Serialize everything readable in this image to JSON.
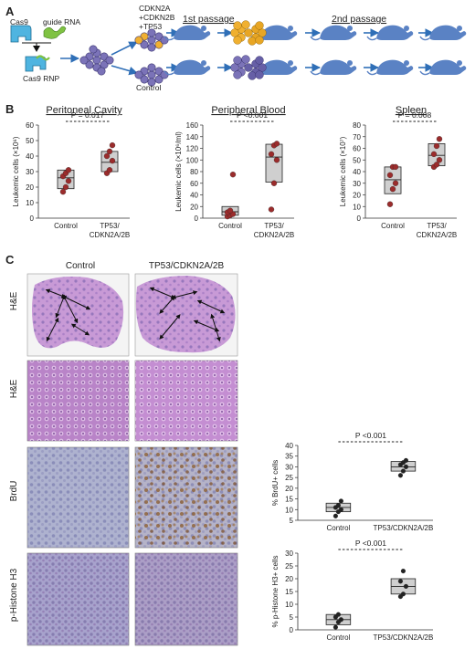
{
  "panel_a": {
    "letter": "A",
    "cas9_label": "Cas9",
    "guide_label": "guide RNA",
    "rnp_label": "Cas9 RNP",
    "treatment_lines": [
      "CDKN2A",
      "+CDKN2B",
      "+TP53"
    ],
    "control_label": "Control",
    "first_passage_label": "1st passage",
    "second_passage_label": "2nd passage",
    "colors": {
      "cas9": "#4fb4e0",
      "guide": "#7fc242",
      "cell": "#7b73b8",
      "tumor_cell": "#f0b030",
      "mouse": "#5a82c4",
      "arrow": "#2f6fb7"
    }
  },
  "panel_b": {
    "letter": "B",
    "control_label": "Control",
    "treat_label_1": "TP53/",
    "treat_label_2": "CDKN2A/2B"
  },
  "panel_c": {
    "letter": "C",
    "col_control": "Control",
    "col_treat": "TP53/CDKN2A/2B",
    "row_labels": [
      "H&E",
      "H&E",
      "BrdU",
      "p-Histone H3"
    ],
    "stain_colors": {
      "he_low": "#c89ad6",
      "he_high": "#b984c8",
      "ihc": "#aeb2cf"
    }
  },
  "chart_data": [
    {
      "type": "scatter",
      "title": "Peritoneal Cavity",
      "ylabel": "Leukemic cells (×10⁶)",
      "ylim": [
        0,
        60
      ],
      "yticks": [
        0,
        10,
        20,
        30,
        40,
        50,
        60
      ],
      "categories": [
        "Control",
        "TP53/CDKN2A/2B"
      ],
      "points": [
        [
          17,
          20,
          24,
          27,
          29,
          31
        ],
        [
          29,
          31,
          37,
          40,
          43,
          47
        ]
      ],
      "box": [
        [
          19,
          26,
          31
        ],
        [
          30,
          36,
          43
        ]
      ],
      "pvalue": "P = 0.017"
    },
    {
      "type": "scatter",
      "title": "Peripheral Blood",
      "ylabel": "Leukemic cells (×10⁶/ml)",
      "ylim": [
        0,
        160
      ],
      "yticks": [
        0,
        20,
        40,
        60,
        80,
        100,
        120,
        140,
        160
      ],
      "categories": [
        "Control",
        "TP53/CDKN2A/2B"
      ],
      "points": [
        [
          3,
          5,
          7,
          10,
          13,
          75
        ],
        [
          15,
          60,
          100,
          110,
          125,
          128
        ]
      ],
      "box": [
        [
          5,
          11,
          20
        ],
        [
          62,
          105,
          127
        ]
      ],
      "pvalue": "P <0.001"
    },
    {
      "type": "scatter",
      "title": "Spleen",
      "ylabel": "Leukemic cells (×10⁷)",
      "ylim": [
        0,
        80
      ],
      "yticks": [
        0,
        10,
        20,
        30,
        40,
        50,
        60,
        70,
        80
      ],
      "categories": [
        "Control",
        "TP53/CDKN2A/2B"
      ],
      "points": [
        [
          12,
          25,
          30,
          37,
          44,
          44
        ],
        [
          44,
          46,
          50,
          55,
          62,
          68
        ]
      ],
      "box": [
        [
          21,
          33,
          44
        ],
        [
          45,
          54,
          64
        ]
      ],
      "pvalue": "P = 0.008"
    },
    {
      "type": "scatter",
      "title": "",
      "ylabel": "% BrdU+ cells",
      "ylim": [
        5,
        40
      ],
      "yticks": [
        5,
        10,
        15,
        20,
        25,
        30,
        35,
        40
      ],
      "categories": [
        "Control",
        "TP53/CDKN2A/2B"
      ],
      "points": [
        [
          7,
          9,
          10,
          11,
          12,
          14
        ],
        [
          26,
          28,
          30,
          31,
          32,
          33
        ]
      ],
      "box": [
        [
          9,
          11,
          13
        ],
        [
          28,
          30,
          32.5
        ]
      ],
      "pvalue": "P <0.001"
    },
    {
      "type": "scatter",
      "title": "",
      "ylabel": "% p-Histone H3+ cells",
      "ylim": [
        0,
        30
      ],
      "yticks": [
        0,
        5,
        10,
        15,
        20,
        25,
        30
      ],
      "categories": [
        "Control",
        "TP53/CDKN2A/2B"
      ],
      "points": [
        [
          1,
          3,
          4,
          5,
          6
        ],
        [
          13,
          14,
          17,
          19,
          23
        ]
      ],
      "box": [
        [
          2,
          4,
          6
        ],
        [
          14,
          17,
          20
        ]
      ],
      "pvalue": "P <0.001"
    }
  ]
}
